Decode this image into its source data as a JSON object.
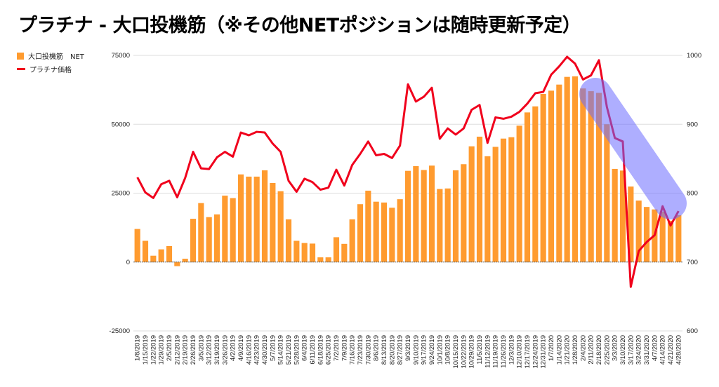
{
  "title": "プラチナ - 大口投機筋（※その他NETポジションは随時更新予定）",
  "chart_data": {
    "type": "bar+line",
    "title": "プラチナ - 大口投機筋（※その他NETポジションは随時更新予定）",
    "legend_position": "top-left",
    "grid": true,
    "categories": [
      "1/8/2019",
      "1/15/2019",
      "1/22/2019",
      "1/29/2019",
      "2/5/2019",
      "2/12/2019",
      "2/19/2019",
      "2/26/2019",
      "3/5/2019",
      "3/12/2019",
      "3/19/2019",
      "3/26/2019",
      "4/2/2019",
      "4/9/2019",
      "4/16/2019",
      "4/23/2019",
      "4/30/2019",
      "5/7/2019",
      "5/14/2019",
      "5/21/2019",
      "5/28/2019",
      "6/4/2019",
      "6/11/2019",
      "6/18/2019",
      "6/25/2019",
      "7/2/2019",
      "7/9/2019",
      "7/16/2019",
      "7/23/2019",
      "7/30/2019",
      "8/6/2019",
      "8/13/2019",
      "8/20/2019",
      "8/27/2019",
      "9/3/2019",
      "9/10/2019",
      "9/17/2019",
      "9/24/2019",
      "10/1/2019",
      "10/8/2019",
      "10/15/2019",
      "10/22/2019",
      "10/29/2019",
      "11/5/2019",
      "11/12/2019",
      "11/19/2019",
      "11/26/2019",
      "12/3/2019",
      "12/10/2019",
      "12/17/2019",
      "12/24/2019",
      "12/31/2019",
      "1/7/2020",
      "1/14/2020",
      "1/21/2020",
      "1/28/2020",
      "2/4/2020",
      "2/11/2020",
      "2/18/2020",
      "2/25/2020",
      "3/3/2020",
      "3/10/2020",
      "3/17/2020",
      "3/24/2020",
      "3/31/2020",
      "4/7/2020",
      "4/14/2020",
      "4/21/2020",
      "4/28/2020"
    ],
    "series": [
      {
        "name": "大口投機筋　NET",
        "type": "bar",
        "axis": "left",
        "color": "#ff9b2f",
        "values": [
          12000,
          7700,
          2300,
          4600,
          5800,
          -1500,
          1200,
          15700,
          21400,
          16300,
          17300,
          24100,
          23200,
          31800,
          31000,
          31000,
          33300,
          28700,
          25700,
          15500,
          7700,
          6900,
          6700,
          1700,
          1700,
          9000,
          6600,
          15500,
          21000,
          25900,
          21900,
          21600,
          19700,
          22800,
          33100,
          34800,
          33400,
          35000,
          26500,
          26700,
          33300,
          35500,
          42000,
          45500,
          38400,
          41800,
          44800,
          45300,
          49500,
          54300,
          56500,
          61000,
          62200,
          64400,
          67200,
          67400,
          63000,
          62000,
          61400,
          50000,
          33800,
          33200,
          27400,
          22300,
          20000,
          19100,
          18300,
          15000,
          17000
        ]
      },
      {
        "name": "プラチナ価格",
        "type": "line",
        "axis": "right",
        "color": "#f0001c",
        "values": [
          823,
          801,
          793,
          813,
          818,
          794,
          822,
          860,
          836,
          835,
          852,
          860,
          853,
          888,
          884,
          889,
          888,
          872,
          860,
          818,
          802,
          821,
          816,
          805,
          808,
          834,
          811,
          841,
          857,
          875,
          855,
          857,
          851,
          869,
          958,
          933,
          940,
          953,
          879,
          894,
          885,
          894,
          921,
          928,
          873,
          910,
          908,
          911,
          918,
          930,
          945,
          947,
          972,
          984,
          998,
          988,
          965,
          971,
          993,
          925,
          880,
          875,
          664,
          716,
          729,
          739,
          781,
          753,
          774
        ]
      }
    ],
    "left_axis": {
      "ylim": [
        -25000,
        75000
      ],
      "ticks": [
        "-25000",
        "0",
        "25000",
        "50000",
        "75000"
      ]
    },
    "right_axis": {
      "ylim": [
        600,
        1000
      ],
      "ticks": [
        "600",
        "700",
        "800",
        "900",
        "1000"
      ]
    },
    "highlight_color": "#6b6bff"
  }
}
